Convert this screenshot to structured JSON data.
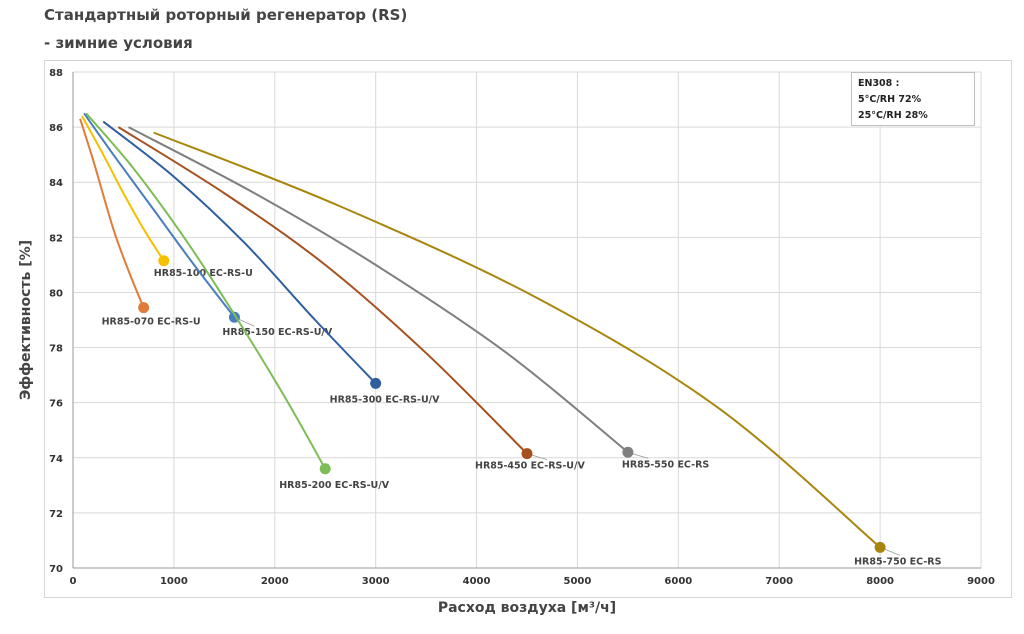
{
  "title": "Стандартный роторный регенератор (RS)",
  "subtitle": " - зимние условия",
  "legend_box": [
    "EN308 :",
    "5°C/RH 72%",
    "25°C/RH 28%"
  ],
  "chart_data": {
    "type": "line",
    "xlabel": "Расход воздуха [м³/ч]",
    "ylabel": "Эффективность [%]",
    "xlim": [
      0,
      9000
    ],
    "ylim": [
      70,
      88
    ],
    "xticks": [
      0,
      1000,
      2000,
      3000,
      4000,
      5000,
      6000,
      7000,
      8000,
      9000
    ],
    "yticks": [
      70,
      72,
      74,
      76,
      78,
      80,
      82,
      84,
      86,
      88
    ],
    "grid": true,
    "series": [
      {
        "name": "HR85-070 EC-RS-U",
        "color": "#e07b39",
        "line": [
          [
            70,
            86.3
          ],
          [
            200,
            84.8
          ],
          [
            400,
            82.3
          ],
          [
            560,
            80.7
          ],
          [
            700,
            79.45
          ]
        ],
        "end": [
          700,
          79.45
        ]
      },
      {
        "name": "HR85-100 EC-RS-U",
        "color": "#f5c000",
        "line": [
          [
            90,
            86.4
          ],
          [
            300,
            85.0
          ],
          [
            500,
            83.6
          ],
          [
            700,
            82.3
          ],
          [
            900,
            81.15
          ]
        ],
        "end": [
          900,
          81.15
        ]
      },
      {
        "name": "HR85-150 EC-RS-U/V",
        "color": "#4a7ebb",
        "line": [
          [
            110,
            86.5
          ],
          [
            400,
            85.0
          ],
          [
            800,
            83.0
          ],
          [
            1200,
            81.0
          ],
          [
            1600,
            79.1
          ]
        ],
        "end": [
          1600,
          79.1
        ]
      },
      {
        "name": "HR85-200 EC-RS-U/V",
        "color": "#7dbd57",
        "line": [
          [
            130,
            86.5
          ],
          [
            600,
            84.5
          ],
          [
            1100,
            82.0
          ],
          [
            1600,
            79.2
          ],
          [
            2100,
            76.2
          ],
          [
            2500,
            73.6
          ]
        ],
        "end": [
          2500,
          73.6
        ]
      },
      {
        "name": "HR85-300 EC-RS-U/V",
        "color": "#2e5f9e",
        "line": [
          [
            300,
            86.2
          ],
          [
            1000,
            84.2
          ],
          [
            1700,
            81.8
          ],
          [
            2400,
            79.0
          ],
          [
            3000,
            76.7
          ]
        ],
        "end": [
          3000,
          76.7
        ]
      },
      {
        "name": "HR85-450 EC-RS-U/V",
        "color": "#a7501f",
        "line": [
          [
            450,
            86.0
          ],
          [
            1500,
            83.6
          ],
          [
            2500,
            81.0
          ],
          [
            3500,
            77.8
          ],
          [
            4500,
            74.15
          ]
        ],
        "end": [
          4500,
          74.15
        ]
      },
      {
        "name": "HR85-550 EC-RS",
        "color": "#7f7f7f",
        "line": [
          [
            550,
            86.0
          ],
          [
            1800,
            83.6
          ],
          [
            3000,
            81.0
          ],
          [
            4300,
            77.8
          ],
          [
            5500,
            74.2
          ]
        ],
        "end": [
          5500,
          74.2
        ]
      },
      {
        "name": "HR85-750 EC-RS",
        "color": "#a8860e",
        "line": [
          [
            800,
            85.8
          ],
          [
            2600,
            83.2
          ],
          [
            4600,
            79.8
          ],
          [
            6400,
            75.8
          ],
          [
            8000,
            70.75
          ]
        ],
        "end": [
          8000,
          70.75
        ]
      }
    ]
  }
}
